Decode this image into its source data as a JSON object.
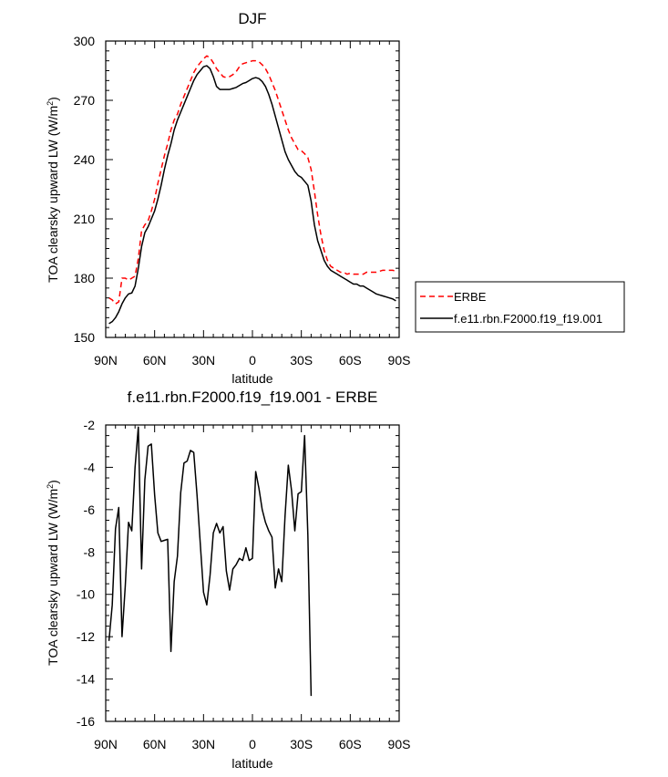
{
  "chart_data": [
    {
      "type": "line",
      "title": "DJF",
      "xlabel": "latitude",
      "ylabel": "TOA clearsky upward LW (W/m",
      "ylabel_superscript": "2",
      "ylabel_suffix": ")",
      "xlim": [
        90,
        -90
      ],
      "ylim": [
        150,
        300
      ],
      "x_ticks": [
        90,
        60,
        30,
        0,
        -30,
        -60,
        -90
      ],
      "x_tick_labels": [
        "90N",
        "60N",
        "30N",
        "0",
        "30S",
        "60S",
        "90S"
      ],
      "y_ticks": [
        150,
        180,
        210,
        240,
        270,
        300
      ],
      "y_tick_labels": [
        "150",
        "180",
        "210",
        "240",
        "270",
        "300"
      ],
      "legend_position": "right-bottom",
      "series": [
        {
          "name": "ERBE",
          "color": "#ff0000",
          "dash": "dashed",
          "points": [
            [
              88,
              170
            ],
            [
              86,
              169
            ],
            [
              84,
              167
            ],
            [
              82,
              168
            ],
            [
              80,
              180
            ],
            [
              78,
              180
            ],
            [
              76,
              179
            ],
            [
              74,
              180
            ],
            [
              72,
              181
            ],
            [
              70,
              190
            ],
            [
              68,
              204
            ],
            [
              66,
              207
            ],
            [
              64,
              209
            ],
            [
              62,
              214
            ],
            [
              60,
              220
            ],
            [
              58,
              228
            ],
            [
              56,
              235
            ],
            [
              54,
              242
            ],
            [
              52,
              248
            ],
            [
              50,
              255
            ],
            [
              48,
              260
            ],
            [
              46,
              263
            ],
            [
              44,
              268
            ],
            [
              42,
              272
            ],
            [
              40,
              276
            ],
            [
              38,
              280
            ],
            [
              36,
              284
            ],
            [
              34,
              287
            ],
            [
              32,
              289
            ],
            [
              30,
              291
            ],
            [
              28,
              292.5
            ],
            [
              26,
              291.5
            ],
            [
              24,
              289
            ],
            [
              22,
              286
            ],
            [
              20,
              284
            ],
            [
              18,
              282
            ],
            [
              16,
              281.5
            ],
            [
              14,
              282
            ],
            [
              12,
              283
            ],
            [
              10,
              284.5
            ],
            [
              8,
              287
            ],
            [
              6,
              288.5
            ],
            [
              4,
              289
            ],
            [
              2,
              289.5
            ],
            [
              0,
              290
            ],
            [
              -2,
              290
            ],
            [
              -4,
              289.5
            ],
            [
              -6,
              288
            ],
            [
              -8,
              286
            ],
            [
              -10,
              283
            ],
            [
              -12,
              279
            ],
            [
              -14,
              275
            ],
            [
              -16,
              270
            ],
            [
              -18,
              265
            ],
            [
              -20,
              260
            ],
            [
              -22,
              255
            ],
            [
              -24,
              251
            ],
            [
              -26,
              248
            ],
            [
              -28,
              245
            ],
            [
              -30,
              244.5
            ],
            [
              -32,
              243
            ],
            [
              -34,
              241
            ],
            [
              -36,
              235
            ],
            [
              -38,
              224
            ],
            [
              -40,
              212
            ],
            [
              -42,
              202
            ],
            [
              -44,
              194
            ],
            [
              -46,
              189
            ],
            [
              -48,
              186
            ],
            [
              -50,
              185
            ],
            [
              -52,
              184
            ],
            [
              -54,
              183
            ],
            [
              -56,
              183
            ],
            [
              -58,
              182
            ],
            [
              -60,
              182.5
            ],
            [
              -62,
              182
            ],
            [
              -64,
              182
            ],
            [
              -66,
              182
            ],
            [
              -68,
              182
            ],
            [
              -70,
              183
            ],
            [
              -72,
              183
            ],
            [
              -74,
              183
            ],
            [
              -76,
              183
            ],
            [
              -78,
              183.5
            ],
            [
              -80,
              184
            ],
            [
              -82,
              184
            ],
            [
              -84,
              184
            ],
            [
              -86,
              184
            ],
            [
              -88,
              183.5
            ]
          ]
        },
        {
          "name": "f.e11.rbn.F2000.f19_f19.001",
          "color": "#000000",
          "dash": "solid",
          "points": [
            [
              88,
              157
            ],
            [
              86,
              158
            ],
            [
              84,
              160
            ],
            [
              82,
              163
            ],
            [
              80,
              167
            ],
            [
              78,
              170
            ],
            [
              76,
              172
            ],
            [
              74,
              172.5
            ],
            [
              72,
              176
            ],
            [
              70,
              185
            ],
            [
              68,
              196
            ],
            [
              66,
              203
            ],
            [
              64,
              206
            ],
            [
              62,
              210
            ],
            [
              60,
              214
            ],
            [
              58,
              220
            ],
            [
              56,
              227
            ],
            [
              54,
              235
            ],
            [
              52,
              242
            ],
            [
              50,
              248
            ],
            [
              48,
              255
            ],
            [
              46,
              260
            ],
            [
              44,
              264
            ],
            [
              42,
              268
            ],
            [
              40,
              272
            ],
            [
              38,
              276
            ],
            [
              36,
              280
            ],
            [
              34,
              283
            ],
            [
              32,
              285
            ],
            [
              30,
              287
            ],
            [
              28,
              287.5
            ],
            [
              26,
              286
            ],
            [
              24,
              282
            ],
            [
              22,
              277
            ],
            [
              20,
              275.5
            ],
            [
              18,
              275.5
            ],
            [
              16,
              275.5
            ],
            [
              14,
              275.5
            ],
            [
              12,
              276
            ],
            [
              10,
              276.5
            ],
            [
              8,
              277.5
            ],
            [
              6,
              278.5
            ],
            [
              4,
              279
            ],
            [
              2,
              280
            ],
            [
              0,
              281
            ],
            [
              -2,
              281.5
            ],
            [
              -4,
              281
            ],
            [
              -6,
              279.5
            ],
            [
              -8,
              277
            ],
            [
              -10,
              273
            ],
            [
              -12,
              268
            ],
            [
              -14,
              262
            ],
            [
              -16,
              256
            ],
            [
              -18,
              250
            ],
            [
              -20,
              244
            ],
            [
              -22,
              240
            ],
            [
              -24,
              237
            ],
            [
              -26,
              234
            ],
            [
              -28,
              232
            ],
            [
              -30,
              231
            ],
            [
              -32,
              229
            ],
            [
              -34,
              227
            ],
            [
              -36,
              219
            ],
            [
              -38,
              207
            ],
            [
              -40,
              199
            ],
            [
              -42,
              194
            ],
            [
              -44,
              189
            ],
            [
              -46,
              186
            ],
            [
              -48,
              184
            ],
            [
              -50,
              183
            ],
            [
              -52,
              182
            ],
            [
              -54,
              181
            ],
            [
              -56,
              180
            ],
            [
              -58,
              179
            ],
            [
              -60,
              178
            ],
            [
              -62,
              177
            ],
            [
              -64,
              177
            ],
            [
              -66,
              176
            ],
            [
              -68,
              176
            ],
            [
              -70,
              175
            ],
            [
              -72,
              174
            ],
            [
              -74,
              173
            ],
            [
              -76,
              172
            ],
            [
              -78,
              171.5
            ],
            [
              -80,
              171
            ],
            [
              -82,
              170.5
            ],
            [
              -84,
              170
            ],
            [
              -86,
              169.5
            ],
            [
              -88,
              168.5
            ]
          ]
        }
      ]
    },
    {
      "type": "line",
      "title": "f.e11.rbn.F2000.f19_f19.001 - ERBE",
      "xlabel": "latitude",
      "ylabel": "TOA clearsky upward LW (W/m",
      "ylabel_superscript": "2",
      "ylabel_suffix": ")",
      "xlim": [
        90,
        -90
      ],
      "ylim": [
        -16,
        -2
      ],
      "x_ticks": [
        90,
        60,
        30,
        0,
        -30,
        -60,
        -90
      ],
      "x_tick_labels": [
        "90N",
        "60N",
        "30N",
        "0",
        "30S",
        "60S",
        "90S"
      ],
      "y_ticks": [
        -16,
        -14,
        -12,
        -10,
        -8,
        -6,
        -4,
        -2
      ],
      "y_tick_labels": [
        "-16",
        "-14",
        "-12",
        "-10",
        "-8",
        "-6",
        "-4",
        "-2"
      ],
      "series": [
        {
          "name": "",
          "color": "#000000",
          "dash": "solid",
          "points": [
            [
              88,
              -12.2
            ],
            [
              86,
              -10.5
            ],
            [
              84,
              -6.9
            ],
            [
              82,
              -5.9
            ],
            [
              80,
              -12.0
            ],
            [
              78,
              -9.6
            ],
            [
              76,
              -6.6
            ],
            [
              74,
              -7.0
            ],
            [
              72,
              -4.0
            ],
            [
              70,
              -2.1
            ],
            [
              68,
              -8.8
            ],
            [
              66,
              -4.6
            ],
            [
              64,
              -3.0
            ],
            [
              62,
              -2.9
            ],
            [
              60,
              -5.3
            ],
            [
              58,
              -7.1
            ],
            [
              56,
              -7.5
            ],
            [
              54,
              -7.45
            ],
            [
              52,
              -7.4
            ],
            [
              50,
              -12.7
            ],
            [
              48,
              -9.4
            ],
            [
              46,
              -8.2
            ],
            [
              44,
              -5.2
            ],
            [
              42,
              -3.8
            ],
            [
              40,
              -3.7
            ],
            [
              38,
              -3.2
            ],
            [
              36,
              -3.3
            ],
            [
              34,
              -5.3
            ],
            [
              32,
              -7.6
            ],
            [
              30,
              -9.9
            ],
            [
              28,
              -10.5
            ],
            [
              26,
              -9.1
            ],
            [
              24,
              -7.1
            ],
            [
              22,
              -6.65
            ],
            [
              20,
              -7.1
            ],
            [
              18,
              -6.8
            ],
            [
              16,
              -8.9
            ],
            [
              14,
              -9.8
            ],
            [
              12,
              -8.8
            ],
            [
              10,
              -8.6
            ],
            [
              8,
              -8.3
            ],
            [
              6,
              -8.4
            ],
            [
              4,
              -7.8
            ],
            [
              2,
              -8.4
            ],
            [
              0,
              -8.3
            ],
            [
              -2,
              -4.2
            ],
            [
              -4,
              -5.0
            ],
            [
              -6,
              -6.0
            ],
            [
              -8,
              -6.6
            ],
            [
              -10,
              -7.0
            ],
            [
              -12,
              -7.3
            ],
            [
              -14,
              -9.7
            ],
            [
              -16,
              -8.8
            ],
            [
              -18,
              -9.4
            ],
            [
              -20,
              -6.3
            ],
            [
              -22,
              -3.9
            ],
            [
              -24,
              -5.1
            ],
            [
              -26,
              -7.0
            ],
            [
              -28,
              -5.25
            ],
            [
              -30,
              -5.15
            ],
            [
              -32,
              -2.5
            ],
            [
              -34,
              -7.2
            ],
            [
              -36,
              -14.8
            ]
          ]
        }
      ]
    }
  ]
}
